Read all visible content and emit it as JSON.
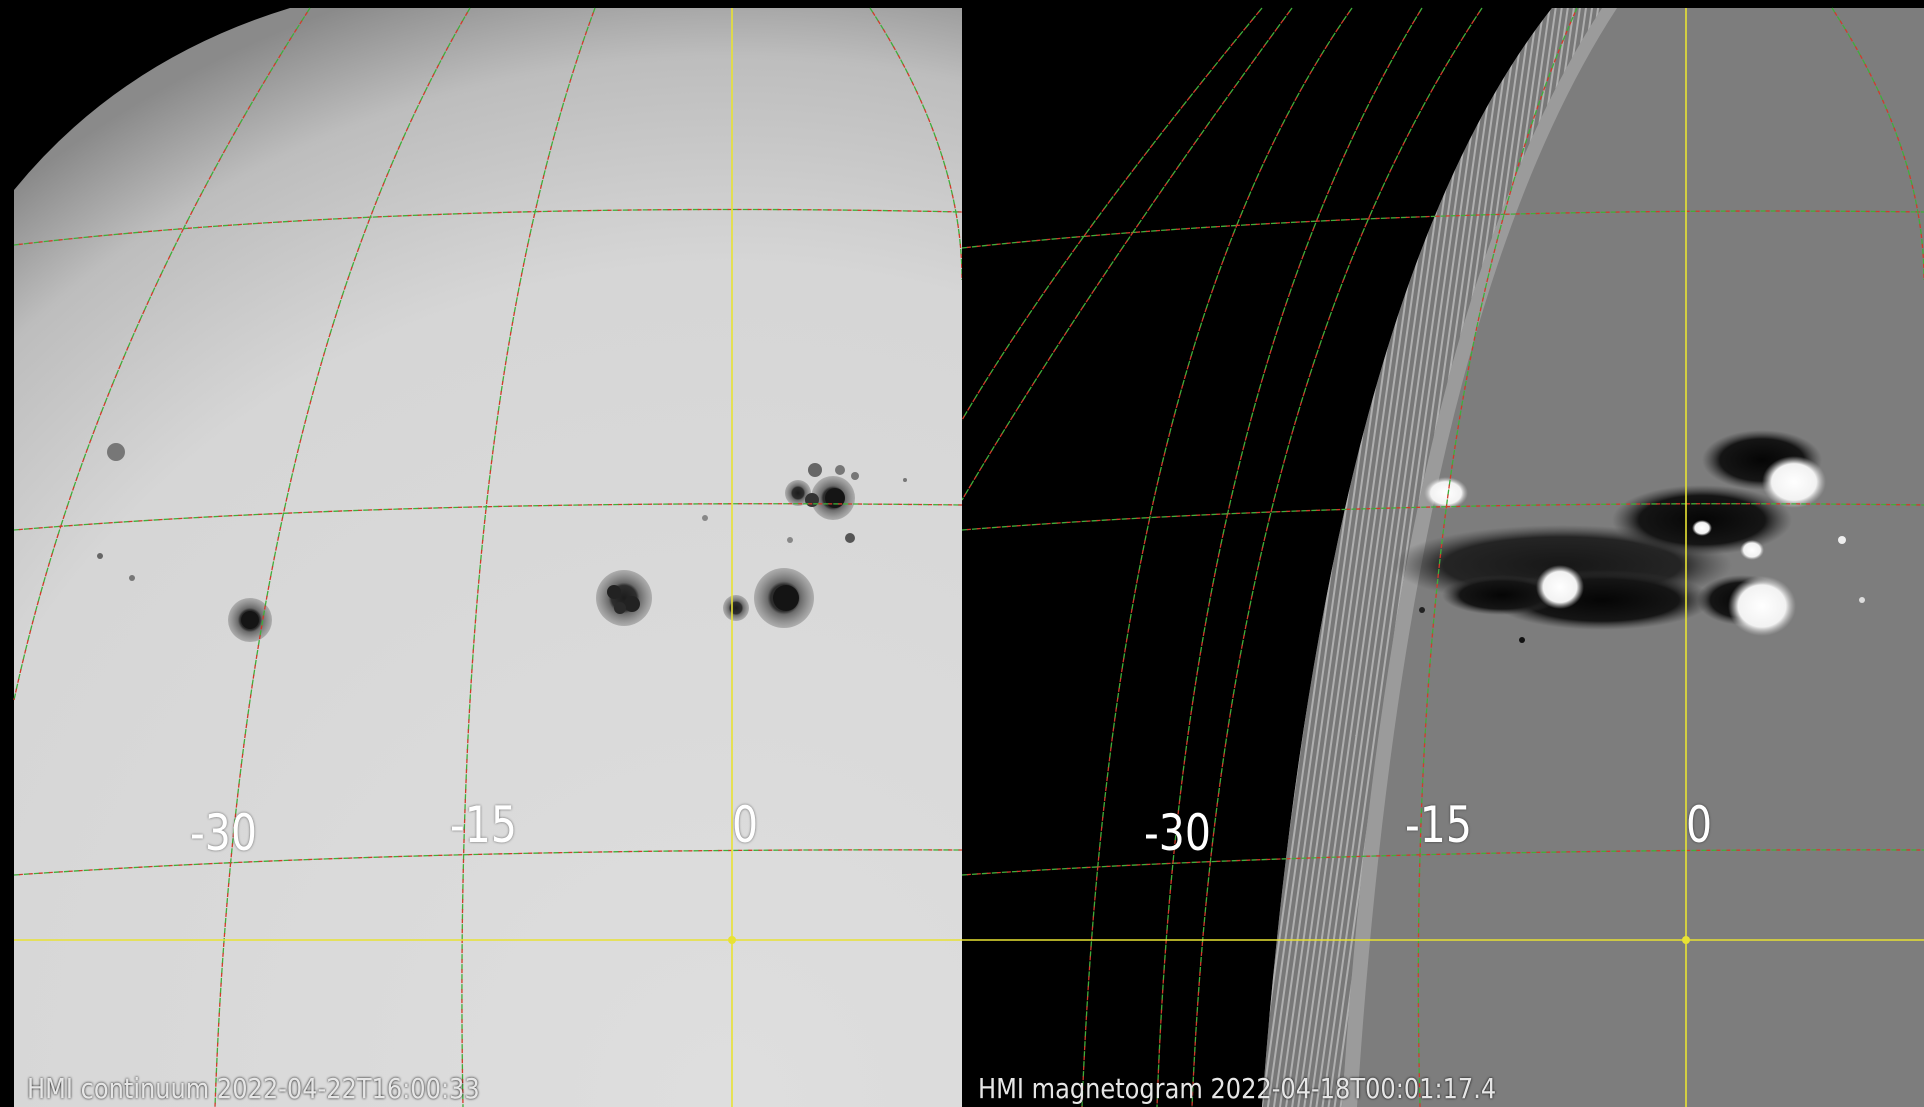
{
  "left_panel": {
    "caption": "HMI continuum 2022-04-22T16:00:33",
    "longitude_labels": [
      "-30",
      "-15",
      "0"
    ]
  },
  "right_panel": {
    "caption": "HMI magnetogram 2022-04-18T00:01:17.4",
    "longitude_labels": [
      "-30",
      "-15",
      "0"
    ]
  },
  "colors": {
    "grid_red": "#d23a2a",
    "grid_green": "#3fae3a",
    "meridian_yellow": "#e8e233",
    "continuum_disk": "#d9d9d9",
    "magnetogram_disk": "#808080"
  }
}
